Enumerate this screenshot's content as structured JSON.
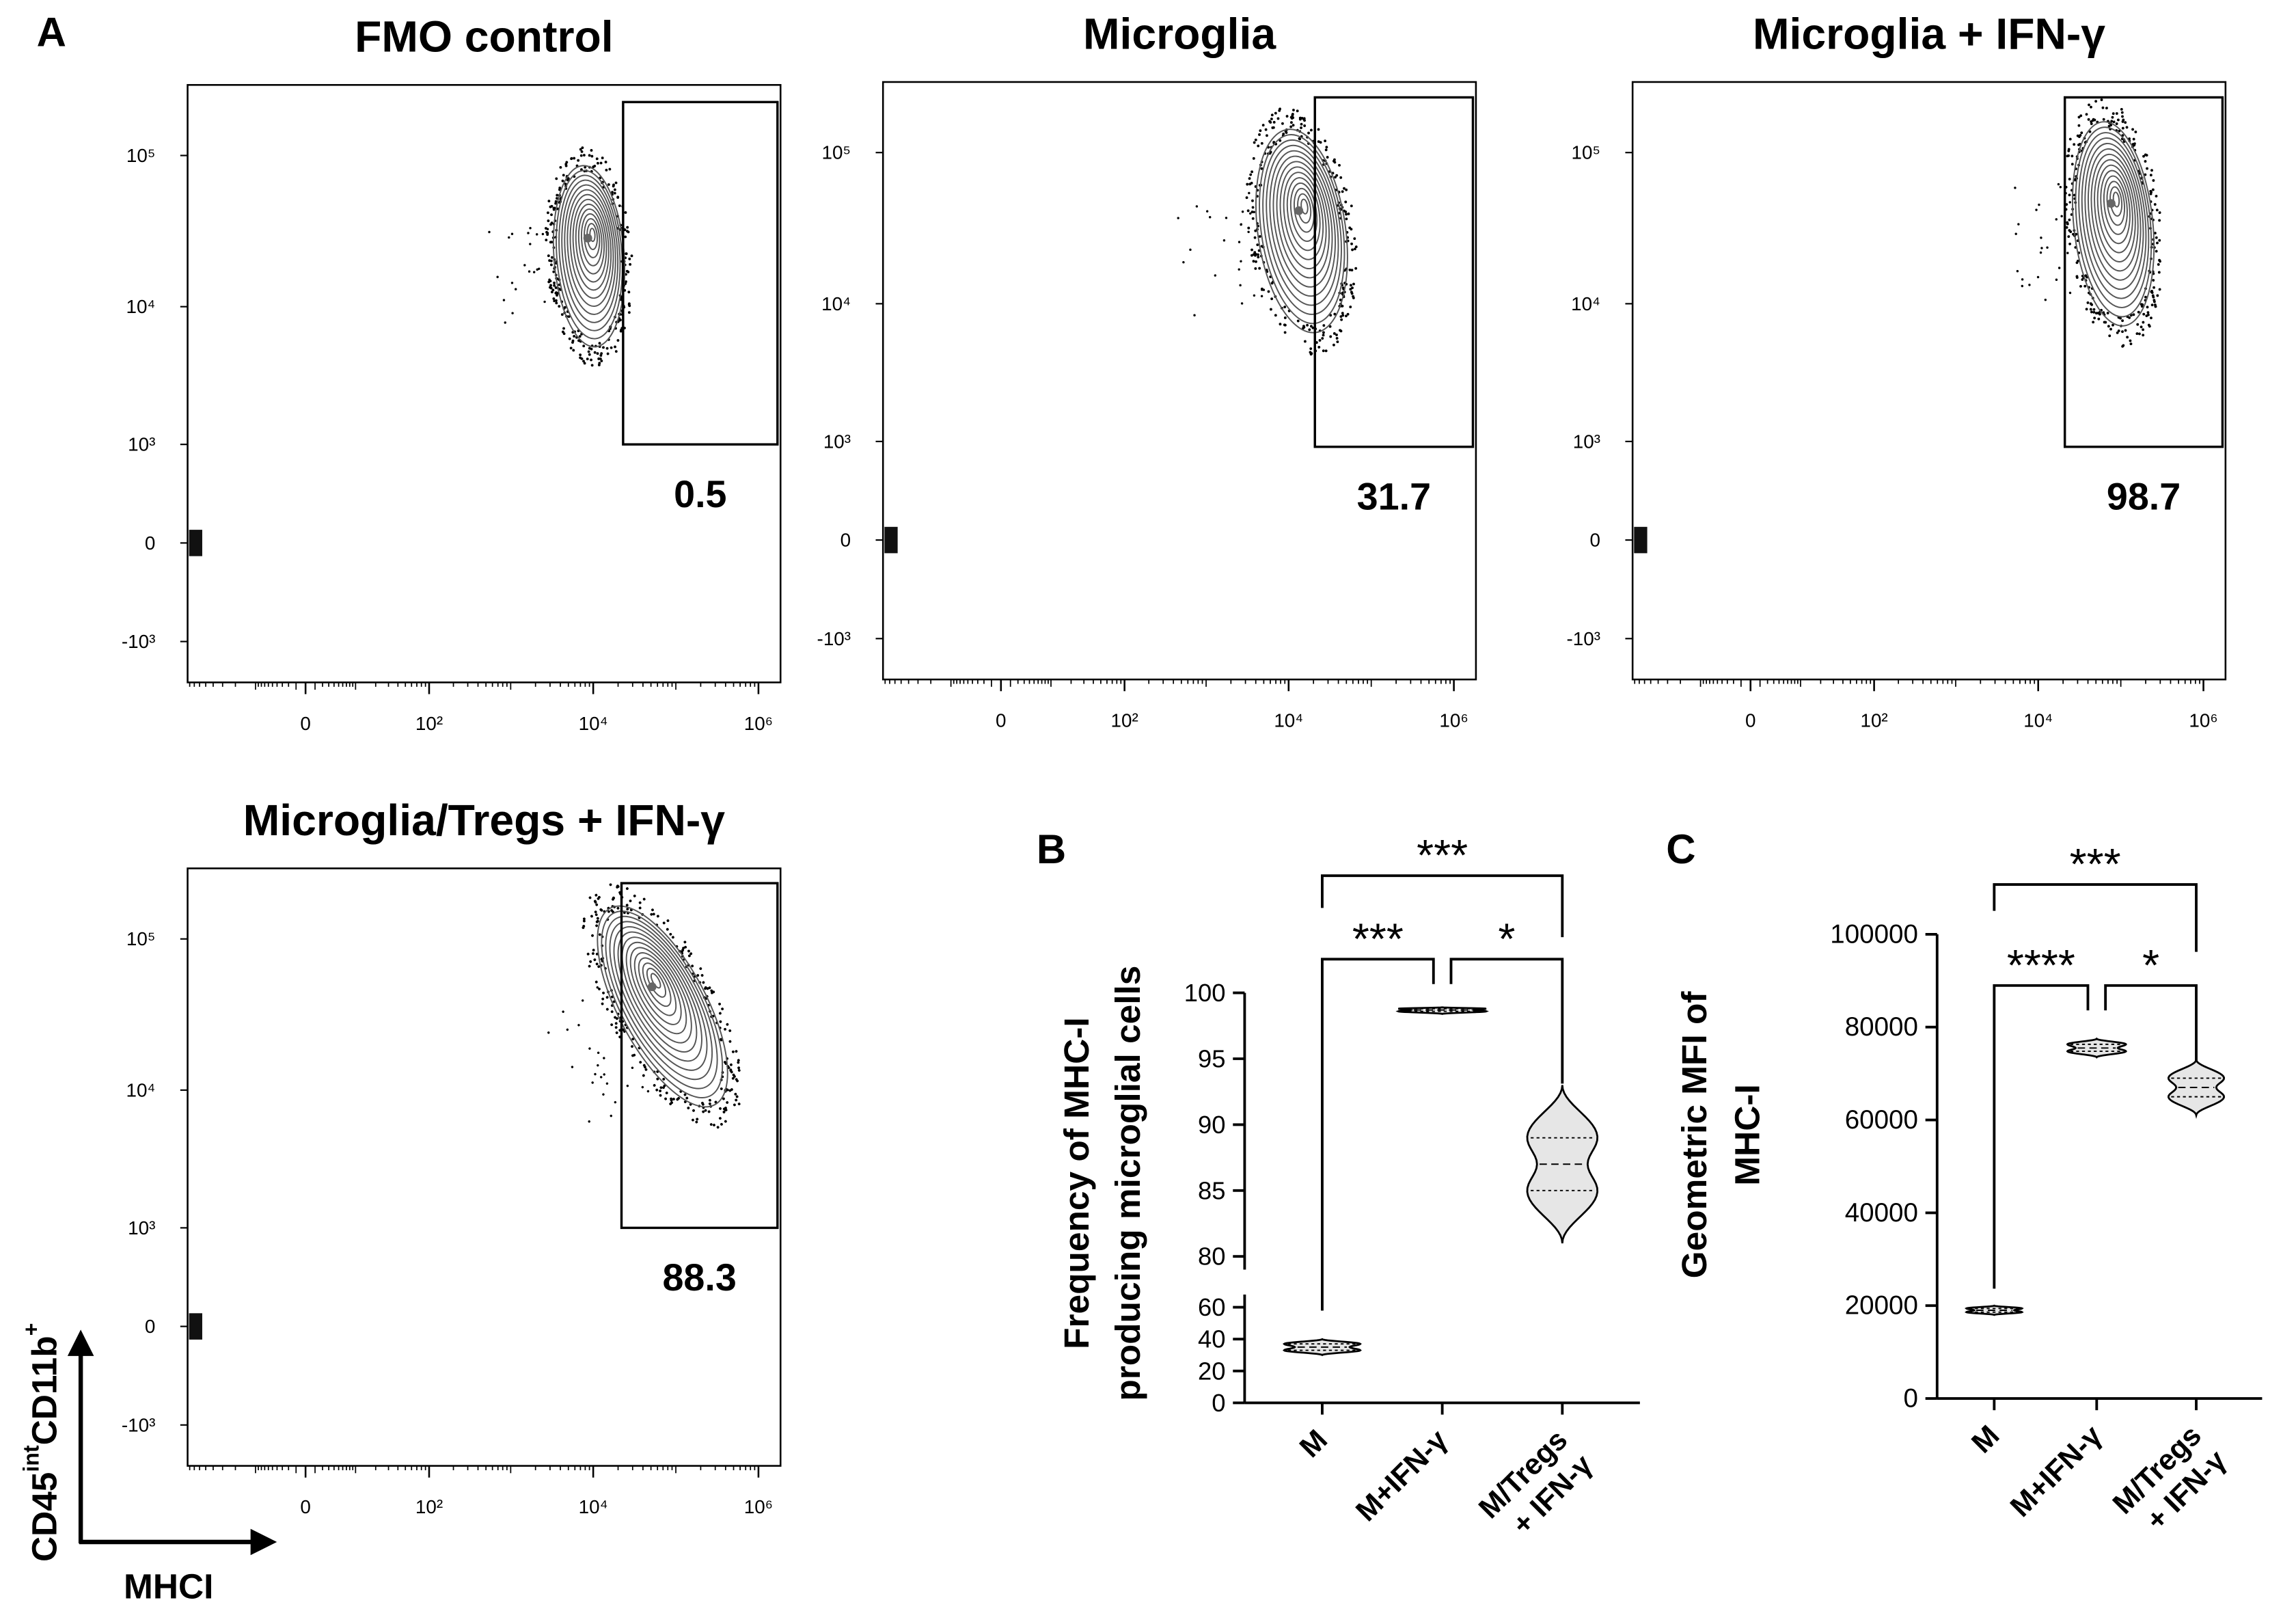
{
  "chart_data": [
    {
      "type": "contour",
      "panel": "A",
      "title": "FMO control",
      "xlim": [
        -85,
        1850000
      ],
      "ylim": [
        -2100,
        290000
      ],
      "xticks": [
        0,
        {
          "value": 100,
          "label": "10²"
        },
        {
          "value": 10000,
          "label": "10⁴"
        },
        {
          "value": 1000000,
          "label": "10⁶"
        }
      ],
      "yticks": [
        {
          "value": -1000,
          "label": "-10³"
        },
        0,
        {
          "value": 1000,
          "label": "10³"
        },
        {
          "value": 10000,
          "label": "10⁴"
        },
        {
          "value": 100000,
          "label": "10⁵"
        }
      ],
      "gate": {
        "x": [
          23000,
          1700000
        ],
        "y": [
          1000,
          224000
        ]
      },
      "gate_percent": 0.5,
      "population_center": [
        8900,
        21700
      ]
    },
    {
      "type": "contour",
      "title": "Microglia",
      "xlim": [
        -85,
        1850000
      ],
      "ylim": [
        -2100,
        290000
      ],
      "xticks": [
        0,
        {
          "value": 100,
          "label": "10²"
        },
        {
          "value": 10000,
          "label": "10⁴"
        },
        {
          "value": 1000000,
          "label": "10⁶"
        }
      ],
      "yticks": [
        {
          "value": -1000,
          "label": "-10³"
        },
        0,
        {
          "value": 1000,
          "label": "10³"
        },
        {
          "value": 10000,
          "label": "10⁴"
        },
        {
          "value": 100000,
          "label": "10⁵"
        }
      ],
      "gate": {
        "x": [
          20800,
          1700000
        ],
        "y": [
          900,
          230000
        ]
      },
      "gate_percent": 31.7,
      "population_center": [
        14400,
        30500
      ]
    },
    {
      "type": "contour",
      "title": "Microglia + IFN-γ",
      "xlim": [
        -85,
        1850000
      ],
      "ylim": [
        -2100,
        290000
      ],
      "xticks": [
        0,
        {
          "value": 100,
          "label": "10²"
        },
        {
          "value": 10000,
          "label": "10⁴"
        },
        {
          "value": 1000000,
          "label": "10⁶"
        }
      ],
      "yticks": [
        {
          "value": -1000,
          "label": "-10³"
        },
        0,
        {
          "value": 1000,
          "label": "10³"
        },
        {
          "value": 10000,
          "label": "10⁴"
        },
        {
          "value": 100000,
          "label": "10⁵"
        }
      ],
      "gate": {
        "x": [
          21000,
          1700000
        ],
        "y": [
          900,
          230000
        ]
      },
      "gate_percent": 98.7,
      "population_center": [
        81000,
        34000
      ]
    },
    {
      "type": "contour",
      "title": "Microglia/Tregs + IFN-γ",
      "xlim": [
        -85,
        1850000
      ],
      "ylim": [
        -2100,
        290000
      ],
      "xticks": [
        0,
        {
          "value": 100,
          "label": "10²"
        },
        {
          "value": 10000,
          "label": "10⁴"
        },
        {
          "value": 1000000,
          "label": "10⁶"
        }
      ],
      "yticks": [
        {
          "value": -1000,
          "label": "-10³"
        },
        0,
        {
          "value": 1000,
          "label": "10³"
        },
        {
          "value": 10000,
          "label": "10⁴"
        },
        {
          "value": 100000,
          "label": "10⁵"
        }
      ],
      "gate": {
        "x": [
          22000,
          1700000
        ],
        "y": [
          1000,
          232000
        ]
      },
      "gate_percent": 88.3,
      "population_center": [
        69000,
        36000
      ],
      "xlabel": "MHCI",
      "ylabel": [
        "CD45",
        "int",
        "CD11b",
        "+"
      ]
    },
    {
      "type": "violin",
      "panel": "B",
      "ylabel": [
        "Frequency of MHC-I",
        "producing microglial cells"
      ],
      "categories": [
        [
          "M"
        ],
        [
          "M+IFN-γ"
        ],
        [
          "M/Tregs",
          "+ IFN-γ"
        ]
      ],
      "axis_segments": [
        {
          "ylim": [
            0,
            68
          ],
          "yticks": [
            0,
            20,
            40,
            60
          ]
        },
        {
          "ylim": [
            79,
            100
          ],
          "yticks": [
            80,
            85,
            90,
            95,
            100
          ]
        }
      ],
      "violins": [
        {
          "min": 30,
          "q1": 33,
          "median": 35,
          "q3": 37,
          "max": 40
        },
        {
          "min": 98.4,
          "q1": 98.6,
          "median": 98.7,
          "q3": 98.8,
          "max": 98.9
        },
        {
          "min": 81,
          "q1": 85,
          "median": 87,
          "q3": 89,
          "max": 93
        }
      ],
      "comparisons": [
        {
          "groups": [
            0,
            2
          ],
          "label": "***"
        },
        {
          "groups": [
            0,
            1
          ],
          "label": "***"
        },
        {
          "groups": [
            1,
            2
          ],
          "label": "*"
        }
      ]
    },
    {
      "type": "violin",
      "panel": "C",
      "ylabel": [
        "Geometric MFI of",
        "MHC-I"
      ],
      "categories": [
        [
          "M"
        ],
        [
          "M+IFN-γ"
        ],
        [
          "M/Tregs",
          "+ IFN-γ"
        ]
      ],
      "ylim": [
        0,
        100000
      ],
      "yticks": [
        0,
        20000,
        40000,
        60000,
        80000,
        100000
      ],
      "violins": [
        {
          "min": 18000,
          "q1": 18600,
          "median": 19000,
          "q3": 19400,
          "max": 20000
        },
        {
          "min": 73500,
          "q1": 74800,
          "median": 75500,
          "q3": 76300,
          "max": 77500
        },
        {
          "min": 61000,
          "q1": 65000,
          "median": 67000,
          "q3": 69000,
          "max": 73000
        }
      ],
      "comparisons": [
        {
          "groups": [
            0,
            2
          ],
          "label": "***"
        },
        {
          "groups": [
            0,
            1
          ],
          "label": "****"
        },
        {
          "groups": [
            1,
            2
          ],
          "label": "*"
        }
      ]
    }
  ]
}
